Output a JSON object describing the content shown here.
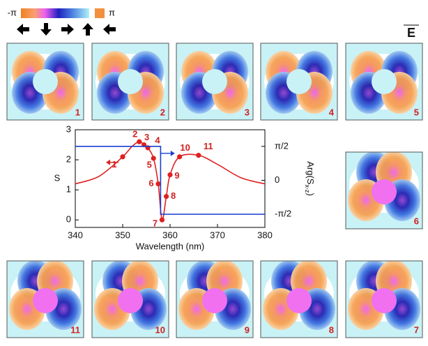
{
  "chart_data": {
    "type": "line",
    "x_label": "Wavelength (nm)",
    "y_label": "S",
    "y2_label": [
      "Arg(S",
      "x-z",
      ")"
    ],
    "xlim": [
      340,
      380
    ],
    "xticks": [
      340,
      350,
      360,
      370,
      380
    ],
    "ylim": [
      -0.25,
      3
    ],
    "yticks": [
      0,
      1,
      2,
      3
    ],
    "y2lim": [
      -2.18,
      2.34
    ],
    "y2ticks": [
      {
        "value": 1.5708,
        "label": "π/2"
      },
      0,
      {
        "value": -1.5708,
        "label": "-π/2"
      }
    ],
    "series": [
      {
        "color": "#e02020",
        "x": [
          340,
          345,
          350,
          352,
          353.5,
          354.5,
          355.3,
          356.5,
          357.5,
          358.3,
          359.2,
          360,
          362,
          366,
          370,
          375,
          380
        ],
        "values": [
          1.2,
          1.45,
          2.1,
          2.45,
          2.6,
          2.5,
          2.4,
          2.05,
          1.2,
          0,
          0.78,
          1.5,
          2.1,
          2.15,
          1.85,
          1.4,
          1.2
        ]
      },
      {
        "color": "#e02020",
        "markers": true,
        "x": [
          350,
          353.5,
          354.5,
          355.3,
          356.5,
          357.5,
          358.3,
          359.2,
          360,
          362,
          366
        ],
        "values": [
          2.1,
          2.6,
          2.5,
          2.4,
          2.05,
          1.2,
          0,
          0.78,
          1.5,
          2.1,
          2.15
        ],
        "point_labels": [
          "1",
          "2",
          "3",
          "4",
          "5",
          "6",
          "7",
          "8",
          "9",
          "10",
          "11"
        ]
      },
      {
        "color": "#1a3fd0",
        "axis": "y2",
        "x": [
          340,
          358,
          358,
          380
        ],
        "values": [
          1.5708,
          1.5708,
          -1.5708,
          -1.5708
        ]
      }
    ]
  },
  "figure": {
    "colorbar_min": "-π",
    "colorbar_max": "π",
    "field_label": "E",
    "panels": [
      {
        "label": "1"
      },
      {
        "label": "2"
      },
      {
        "label": "3"
      },
      {
        "label": "4"
      },
      {
        "label": "5"
      },
      {
        "label": "6"
      },
      {
        "label": "7"
      },
      {
        "label": "8"
      },
      {
        "label": "9"
      },
      {
        "label": "10"
      },
      {
        "label": "11"
      }
    ]
  }
}
